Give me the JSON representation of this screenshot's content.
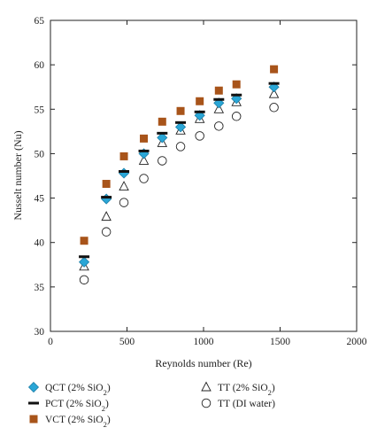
{
  "chart_data": {
    "type": "scatter",
    "title": "",
    "xlabel": "Reynolds number (Re)",
    "ylabel": "Nusselt number (Nu)",
    "xlim": [
      0,
      2000
    ],
    "ylim": [
      30,
      65
    ],
    "xticks": [
      0,
      500,
      1000,
      1500,
      2000
    ],
    "yticks": [
      30,
      35,
      40,
      45,
      50,
      55,
      60,
      65
    ],
    "grid": false,
    "legend_position": "below",
    "series": [
      {
        "name_main": "QCT (2% SiO",
        "name_sub": "2",
        "name_end": ")",
        "marker": "diamond",
        "color": "#2aa6d6",
        "x": [
          220,
          365,
          480,
          610,
          730,
          850,
          975,
          1100,
          1215,
          1460
        ],
        "y": [
          37.8,
          44.9,
          47.8,
          50.0,
          51.8,
          53.0,
          54.3,
          55.7,
          56.2,
          57.5
        ]
      },
      {
        "name_main": "PCT (2% SiO",
        "name_sub": "2",
        "name_end": ")",
        "marker": "dash",
        "color": "#111111",
        "x": [
          220,
          365,
          480,
          610,
          730,
          850,
          975,
          1100,
          1215,
          1460
        ],
        "y": [
          38.4,
          45.1,
          48.0,
          50.3,
          52.3,
          53.5,
          54.7,
          56.1,
          56.6,
          57.9
        ]
      },
      {
        "name_main": "VCT (2% SiO",
        "name_sub": "2",
        "name_end": ")",
        "marker": "square",
        "color": "#a8541a",
        "x": [
          220,
          365,
          480,
          610,
          730,
          850,
          975,
          1100,
          1215,
          1460
        ],
        "y": [
          40.2,
          46.6,
          49.7,
          51.7,
          53.6,
          54.8,
          55.9,
          57.1,
          57.8,
          59.5
        ]
      },
      {
        "name_main": "TT (2% SiO",
        "name_sub": "2",
        "name_end": ")",
        "marker": "triangle",
        "color": "#ffffff",
        "x": [
          220,
          365,
          480,
          610,
          730,
          850,
          975,
          1100,
          1215,
          1460
        ],
        "y": [
          37.3,
          42.9,
          46.3,
          49.2,
          51.2,
          52.6,
          53.9,
          55.0,
          55.8,
          56.7
        ]
      },
      {
        "name_main": "TT (DI water)",
        "name_sub": "",
        "name_end": "",
        "marker": "circle",
        "color": "#ffffff",
        "x": [
          220,
          365,
          480,
          610,
          730,
          850,
          975,
          1100,
          1215,
          1460
        ],
        "y": [
          35.8,
          41.2,
          44.5,
          47.2,
          49.2,
          50.8,
          52.0,
          53.1,
          54.2,
          55.2
        ]
      }
    ]
  }
}
